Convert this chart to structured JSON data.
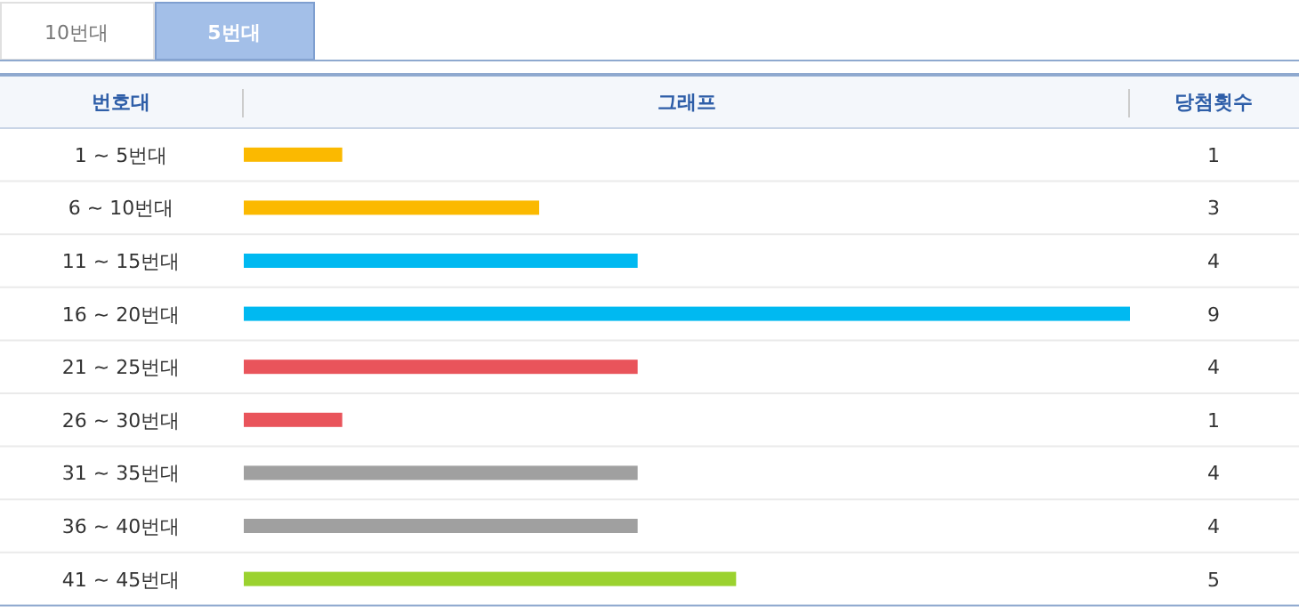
{
  "chart_data": {
    "type": "bar",
    "orientation": "horizontal",
    "title": "그래프",
    "ylabel": "번호대",
    "y2label": "당첨횟수",
    "annotations": [
      "10번대",
      "5번대"
    ],
    "categories": [
      "1 ~ 5번대",
      "6 ~ 10번대",
      "11 ~ 15번대",
      "16 ~ 20번대",
      "21 ~ 25번대",
      "26 ~ 30번대",
      "31 ~ 35번대",
      "36 ~ 40번대",
      "41 ~ 45번대"
    ],
    "values": [
      1,
      3,
      4,
      9,
      4,
      1,
      4,
      4,
      5
    ],
    "colors": [
      "#fbb900",
      "#fbb900",
      "#00b9f1",
      "#00b9f1",
      "#e9545b",
      "#e9545b",
      "#a0a0a0",
      "#a0a0a0",
      "#9bd22f"
    ],
    "xlim": [
      0,
      9
    ],
    "data_labels": true
  }
}
